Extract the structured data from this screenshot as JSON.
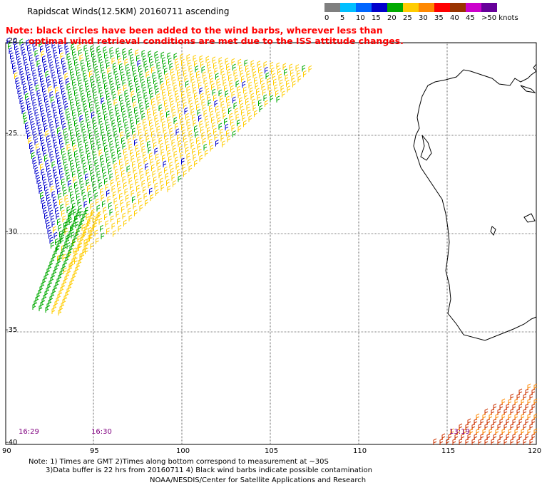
{
  "header": {
    "title": "Rapidscat Winds(12.5KM) 20160711 ascending",
    "note_line1": "Note: black circles have been added to the wind barbs, wherever less than",
    "note_line2": "optimal wind retrieval conditions are met due to the ISS attitude changes."
  },
  "legend": {
    "labels": [
      "0",
      "5",
      "10",
      "15",
      "20",
      "25",
      "30",
      "35",
      "40",
      "45",
      ">50 knots"
    ],
    "colors": [
      "#7f7f7f",
      "#00bfff",
      "#0066ff",
      "#0000cc",
      "#00aa00",
      "#ffcc00",
      "#ff8800",
      "#ff0000",
      "#993300",
      "#cc00cc",
      "#660099"
    ]
  },
  "map": {
    "lat_labels": [
      "-20",
      "-25",
      "-30",
      "-35",
      "-40"
    ],
    "lon_labels": [
      "90",
      "95",
      "100",
      "105",
      "110",
      "115",
      "120"
    ],
    "time_labels": [
      "16:29",
      "16:30",
      "13:19"
    ]
  },
  "footer": {
    "line1": "Note: 1) Times are GMT 2)Times along bottom correspond to measurement at ~30S",
    "line2": "3)Data buffer is 22 hrs from 20160711 4) Black wind barbs indicate possible contamination",
    "line3": "NOAA/NESDIS/Center for Satellite Applications and Research"
  }
}
